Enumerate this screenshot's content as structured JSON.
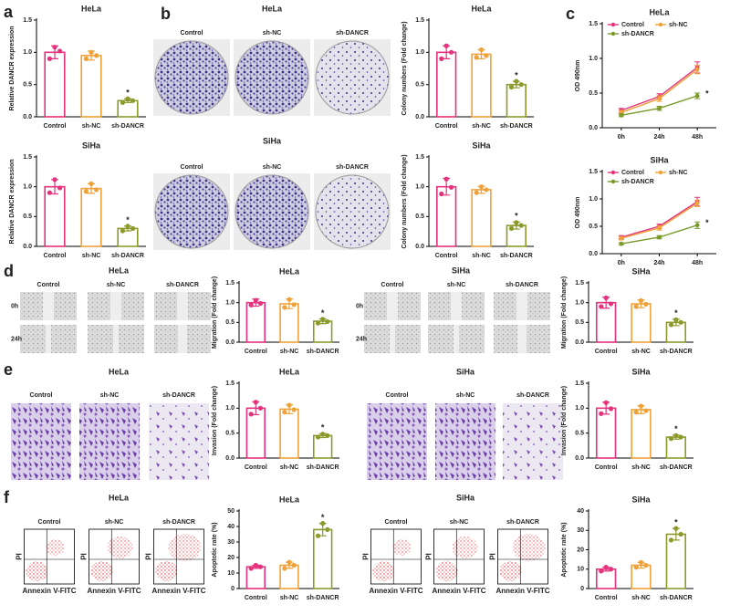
{
  "panel_labels": [
    "a",
    "b",
    "c",
    "d",
    "e",
    "f"
  ],
  "image_panels": [
    {
      "title": "HeLa",
      "columns": [
        "Control",
        "sh-NC",
        "sh-DANCR"
      ]
    },
    {
      "title": "SiHa",
      "columns": [
        "Control",
        "sh-NC",
        "sh-DANCR"
      ]
    },
    {
      "title": "HeLa",
      "columns": [
        "Control",
        "sh-NC",
        "sh-DANCR"
      ],
      "rows": [
        "0h",
        "24h"
      ]
    },
    {
      "title": "SiHa",
      "columns": [
        "Control",
        "sh-NC",
        "sh-DANCR"
      ],
      "rows": [
        "0h",
        "24h"
      ]
    },
    {
      "title": "HeLa",
      "columns": [
        "Control",
        "sh-NC",
        "sh-DANCR"
      ]
    },
    {
      "title": "SiHa",
      "columns": [
        "Control",
        "sh-NC",
        "sh-DANCR"
      ]
    },
    {
      "title": "HeLa",
      "columns": [
        "Control",
        "sh-NC",
        "sh-DANCR"
      ],
      "xlabel": "Annexin V-FITC",
      "ylabel": "PI"
    },
    {
      "title": "SiHa",
      "columns": [
        "Control",
        "sh-NC",
        "sh-DANCR"
      ],
      "xlabel": "Annexin V-FITC",
      "ylabel": "PI"
    }
  ],
  "chart_data": [
    {
      "type": "bar",
      "title": "HeLa",
      "ylabel": "Relative DANCR expression",
      "categories": [
        "Control",
        "sh-NC",
        "sh-DANCR"
      ],
      "colors": [
        "#e4327c",
        "#f0a23a",
        "#8c9a2b"
      ],
      "values": [
        1.0,
        0.95,
        0.25
      ],
      "errors": [
        0.1,
        0.07,
        0.03
      ],
      "points": [
        [
          0.9,
          1.08,
          1.02
        ],
        [
          0.9,
          1.0,
          0.95
        ],
        [
          0.22,
          0.28,
          0.25
        ]
      ],
      "significance": [
        null,
        null,
        "*"
      ],
      "ylim": [
        0,
        1.5
      ],
      "yticks": [
        {
          "value": 0,
          "label": "0.0"
        },
        0.5,
        {
          "value": 1,
          "label": "1.0"
        },
        1.5
      ]
    },
    {
      "type": "bar",
      "title": "SiHa",
      "ylabel": "Relative DANCR expression",
      "categories": [
        "Control",
        "sh-NC",
        "sh-DANCR"
      ],
      "colors": [
        "#e4327c",
        "#f0a23a",
        "#8c9a2b"
      ],
      "values": [
        1.0,
        0.97,
        0.3
      ],
      "errors": [
        0.12,
        0.08,
        0.04
      ],
      "points": [
        [
          0.9,
          1.12,
          0.98
        ],
        [
          0.92,
          1.05,
          0.95
        ],
        [
          0.26,
          0.34,
          0.3
        ]
      ],
      "significance": [
        null,
        null,
        "*"
      ],
      "ylim": [
        0,
        1.5
      ],
      "yticks": [
        {
          "value": 0,
          "label": "0.0"
        },
        0.5,
        {
          "value": 1,
          "label": "1.0"
        },
        1.5
      ]
    },
    {
      "type": "bar",
      "title": "HeLa",
      "ylabel": "Colony numbers (Fold change)",
      "categories": [
        "Control",
        "sh-NC",
        "sh-DANCR"
      ],
      "colors": [
        "#e4327c",
        "#f0a23a",
        "#8c9a2b"
      ],
      "values": [
        1.0,
        0.97,
        0.5
      ],
      "errors": [
        0.1,
        0.07,
        0.05
      ],
      "points": [
        [
          0.9,
          1.1,
          1.0
        ],
        [
          0.92,
          1.04,
          0.95
        ],
        [
          0.46,
          0.55,
          0.5
        ]
      ],
      "significance": [
        null,
        null,
        "*"
      ],
      "ylim": [
        0,
        1.5
      ],
      "yticks": [
        {
          "value": 0,
          "label": "0.0"
        },
        0.5,
        {
          "value": 1,
          "label": "1.0"
        },
        1.5
      ]
    },
    {
      "type": "bar",
      "title": "SiHa",
      "ylabel": "Colony numbers (Fold change)",
      "categories": [
        "Control",
        "sh-NC",
        "sh-DANCR"
      ],
      "colors": [
        "#e4327c",
        "#f0a23a",
        "#8c9a2b"
      ],
      "values": [
        1.0,
        0.95,
        0.35
      ],
      "errors": [
        0.14,
        0.06,
        0.06
      ],
      "points": [
        [
          0.88,
          1.13,
          0.99
        ],
        [
          0.9,
          1.0,
          0.95
        ],
        [
          0.3,
          0.4,
          0.35
        ]
      ],
      "significance": [
        null,
        null,
        "*"
      ],
      "ylim": [
        0,
        1.5
      ],
      "yticks": [
        {
          "value": 0,
          "label": "0.0"
        },
        0.5,
        {
          "value": 1,
          "label": "1.0"
        },
        1.5
      ]
    },
    {
      "type": "line",
      "title": "HeLa",
      "ylabel": "OD 490nm",
      "categories": [
        "0h",
        "24h",
        "48h"
      ],
      "series": [
        {
          "name": "Control",
          "color": "#e4327c",
          "values": [
            0.25,
            0.45,
            0.87
          ],
          "errors": [
            0.03,
            0.04,
            0.08
          ]
        },
        {
          "name": "sh-NC",
          "color": "#f0a23a",
          "values": [
            0.22,
            0.42,
            0.84
          ],
          "errors": [
            0.03,
            0.04,
            0.06
          ]
        },
        {
          "name": "sh-DANCR",
          "color": "#7a9a2a",
          "values": [
            0.18,
            0.28,
            0.46
          ],
          "errors": [
            0.02,
            0.03,
            0.04
          ],
          "significance": [
            null,
            null,
            "*"
          ]
        }
      ],
      "ylim": [
        0,
        1.5
      ],
      "yticks": [
        {
          "value": 0,
          "label": "0.0"
        },
        0.5,
        {
          "value": 1,
          "label": "1.0"
        },
        1.5
      ]
    },
    {
      "type": "line",
      "title": "SiHa",
      "ylabel": "OD 490nm",
      "categories": [
        "0h",
        "24h",
        "48h"
      ],
      "series": [
        {
          "name": "Control",
          "color": "#e4327c",
          "values": [
            0.3,
            0.5,
            0.95
          ],
          "errors": [
            0.03,
            0.04,
            0.08
          ]
        },
        {
          "name": "sh-NC",
          "color": "#f0a23a",
          "values": [
            0.28,
            0.47,
            0.92
          ],
          "errors": [
            0.03,
            0.04,
            0.06
          ]
        },
        {
          "name": "sh-DANCR",
          "color": "#7a9a2a",
          "values": [
            0.18,
            0.3,
            0.52
          ],
          "errors": [
            0.02,
            0.03,
            0.06
          ],
          "significance": [
            null,
            null,
            "*"
          ]
        }
      ],
      "ylim": [
        0,
        1.5
      ],
      "yticks": [
        {
          "value": 0,
          "label": "0.0"
        },
        0.5,
        {
          "value": 1,
          "label": "1.0"
        },
        1.5
      ]
    },
    {
      "type": "bar",
      "title": "HeLa",
      "ylabel": "Migration (Fold change)",
      "categories": [
        "Control",
        "sh-NC",
        "sh-DANCR"
      ],
      "colors": [
        "#e4327c",
        "#f0a23a",
        "#8c9a2b"
      ],
      "values": [
        1.0,
        0.97,
        0.53
      ],
      "errors": [
        0.09,
        0.12,
        0.06
      ],
      "points": [
        [
          0.94,
          1.06,
          0.98
        ],
        [
          0.88,
          1.08,
          0.95
        ],
        [
          0.48,
          0.58,
          0.52
        ]
      ],
      "significance": [
        null,
        null,
        "*"
      ],
      "ylim": [
        0,
        1.5
      ],
      "yticks": [
        {
          "value": 0,
          "label": "0.0"
        },
        0.5,
        {
          "value": 1,
          "label": "1.0"
        },
        1.5
      ]
    },
    {
      "type": "bar",
      "title": "SiHa",
      "ylabel": "Migration (Fold change)",
      "categories": [
        "Control",
        "sh-NC",
        "sh-DANCR"
      ],
      "colors": [
        "#e4327c",
        "#f0a23a",
        "#8c9a2b"
      ],
      "values": [
        1.0,
        0.97,
        0.5
      ],
      "errors": [
        0.14,
        0.1,
        0.08
      ],
      "points": [
        [
          0.9,
          1.12,
          0.97
        ],
        [
          0.9,
          1.05,
          0.96
        ],
        [
          0.44,
          0.57,
          0.5
        ]
      ],
      "significance": [
        null,
        null,
        "*"
      ],
      "ylim": [
        0,
        1.5
      ],
      "yticks": [
        {
          "value": 0,
          "label": "0.0"
        },
        0.5,
        {
          "value": 1,
          "label": "1.0"
        },
        1.5
      ]
    },
    {
      "type": "bar",
      "title": "HeLa",
      "ylabel": "Invasion (Fold change)",
      "categories": [
        "Control",
        "sh-NC",
        "sh-DANCR"
      ],
      "colors": [
        "#e4327c",
        "#f0a23a",
        "#8c9a2b"
      ],
      "values": [
        1.0,
        0.98,
        0.45
      ],
      "errors": [
        0.13,
        0.09,
        0.04
      ],
      "points": [
        [
          0.88,
          1.12,
          1.0
        ],
        [
          0.92,
          1.06,
          0.97
        ],
        [
          0.42,
          0.48,
          0.45
        ]
      ],
      "significance": [
        null,
        null,
        "*"
      ],
      "ylim": [
        0,
        1.5
      ],
      "yticks": [
        {
          "value": 0,
          "label": "0.0"
        },
        0.5,
        {
          "value": 1,
          "label": "1.0"
        },
        1.5
      ]
    },
    {
      "type": "bar",
      "title": "SiHa",
      "ylabel": "Invasion (Fold change)",
      "categories": [
        "Control",
        "sh-NC",
        "sh-DANCR"
      ],
      "colors": [
        "#e4327c",
        "#f0a23a",
        "#8c9a2b"
      ],
      "values": [
        1.0,
        0.97,
        0.42
      ],
      "errors": [
        0.12,
        0.08,
        0.04
      ],
      "points": [
        [
          0.89,
          1.11,
          0.99
        ],
        [
          0.92,
          1.04,
          0.95
        ],
        [
          0.39,
          0.45,
          0.42
        ]
      ],
      "significance": [
        null,
        null,
        "*"
      ],
      "ylim": [
        0,
        1.5
      ],
      "yticks": [
        {
          "value": 0,
          "label": "0.0"
        },
        0.5,
        {
          "value": 1,
          "label": "1.0"
        },
        1.5
      ]
    },
    {
      "type": "bar",
      "title": "HeLa",
      "ylabel": "Apoptotic rate (%)",
      "categories": [
        "Control",
        "sh-NC",
        "sh-DANCR"
      ],
      "colors": [
        "#e4327c",
        "#f0a23a",
        "#8c9a2b"
      ],
      "values": [
        14,
        15,
        38
      ],
      "errors": [
        1,
        2,
        4
      ],
      "points": [
        [
          13,
          15,
          14
        ],
        [
          13,
          17,
          15
        ],
        [
          34,
          42,
          38
        ]
      ],
      "significance": [
        null,
        null,
        "*"
      ],
      "ylim": [
        0,
        50
      ],
      "yticks": [
        0,
        10,
        20,
        30,
        40,
        50
      ]
    },
    {
      "type": "bar",
      "title": "SiHa",
      "ylabel": "Apoptotic rate (%)",
      "categories": [
        "Control",
        "sh-NC",
        "sh-DANCR"
      ],
      "colors": [
        "#e4327c",
        "#f0a23a",
        "#8c9a2b"
      ],
      "values": [
        10,
        12,
        28
      ],
      "errors": [
        1,
        1.5,
        3
      ],
      "points": [
        [
          9,
          11,
          10
        ],
        [
          11,
          13.5,
          12
        ],
        [
          25,
          31,
          28
        ]
      ],
      "significance": [
        null,
        null,
        "*"
      ],
      "ylim": [
        0,
        40
      ],
      "yticks": [
        0,
        10,
        20,
        30,
        40
      ]
    }
  ]
}
